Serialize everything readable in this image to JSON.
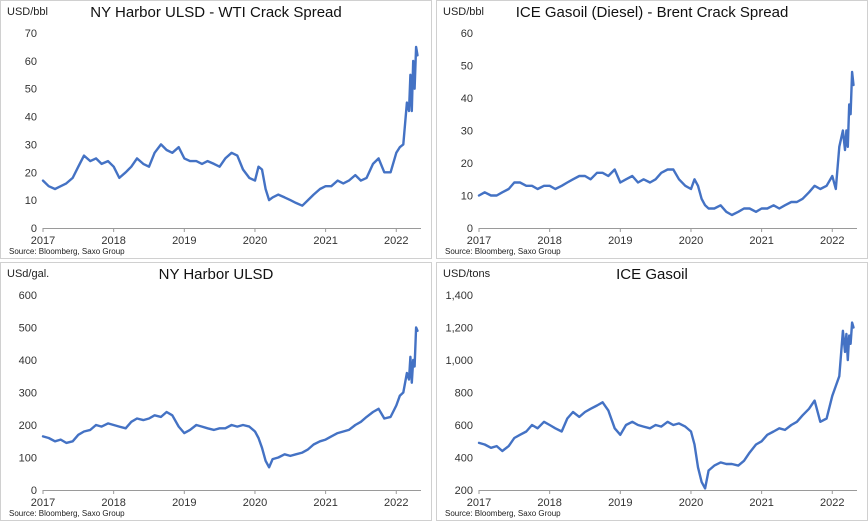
{
  "chart_data": [
    {
      "type": "line",
      "unit_label": "USD/bbl",
      "title": "NY Harbor ULSD - WTI Crack Spread",
      "source": "Source: Bloomberg, Saxo Group",
      "xlim": [
        2017.0,
        2022.35
      ],
      "x_ticks": [
        "2017",
        "2018",
        "2019",
        "2020",
        "2021",
        "2022"
      ],
      "ylim": [
        0,
        70
      ],
      "y_ticks": [
        "0",
        "10",
        "20",
        "30",
        "40",
        "50",
        "60",
        "70"
      ],
      "color": "#4472c4",
      "series": [
        {
          "x": [
            2017.0,
            2017.08,
            2017.17,
            2017.25,
            2017.33,
            2017.42,
            2017.5,
            2017.58,
            2017.67,
            2017.75,
            2017.83,
            2017.92,
            2018.0,
            2018.08,
            2018.17,
            2018.25,
            2018.33,
            2018.42,
            2018.5,
            2018.58,
            2018.67,
            2018.75,
            2018.83,
            2018.92,
            2019.0,
            2019.08,
            2019.17,
            2019.25,
            2019.33,
            2019.42,
            2019.5,
            2019.58,
            2019.67,
            2019.75,
            2019.83,
            2019.92,
            2020.0,
            2020.05,
            2020.1,
            2020.15,
            2020.2,
            2020.25,
            2020.33,
            2020.42,
            2020.5,
            2020.58,
            2020.67,
            2020.75,
            2020.83,
            2020.92,
            2021.0,
            2021.08,
            2021.17,
            2021.25,
            2021.33,
            2021.42,
            2021.5,
            2021.58,
            2021.67,
            2021.75,
            2021.83,
            2021.92,
            2022.0,
            2022.05,
            2022.1,
            2022.15,
            2022.18,
            2022.2,
            2022.22,
            2022.24,
            2022.26,
            2022.28,
            2022.3
          ],
          "y": [
            17,
            15,
            14,
            15,
            16,
            18,
            22,
            26,
            24,
            25,
            23,
            24,
            22,
            18,
            20,
            22,
            25,
            23,
            22,
            27,
            30,
            28,
            27,
            29,
            25,
            24,
            24,
            23,
            24,
            23,
            22,
            25,
            27,
            26,
            21,
            18,
            17,
            22,
            21,
            14,
            10,
            11,
            12,
            11,
            10,
            9,
            8,
            10,
            12,
            14,
            15,
            15,
            17,
            16,
            17,
            19,
            17,
            18,
            23,
            25,
            20,
            20,
            27,
            29,
            30,
            45,
            42,
            55,
            42,
            60,
            50,
            65,
            62
          ]
        }
      ]
    },
    {
      "type": "line",
      "unit_label": "USD/bbl",
      "title": "ICE Gasoil (Diesel) - Brent Crack Spread",
      "source": "Source: Bloomberg, Saxo Group",
      "xlim": [
        2017.0,
        2022.35
      ],
      "x_ticks": [
        "2017",
        "2018",
        "2019",
        "2020",
        "2021",
        "2022"
      ],
      "ylim": [
        0,
        60
      ],
      "y_ticks": [
        "0",
        "10",
        "20",
        "30",
        "40",
        "50",
        "60"
      ],
      "color": "#4472c4",
      "series": [
        {
          "x": [
            2017.0,
            2017.08,
            2017.17,
            2017.25,
            2017.33,
            2017.42,
            2017.5,
            2017.58,
            2017.67,
            2017.75,
            2017.83,
            2017.92,
            2018.0,
            2018.08,
            2018.17,
            2018.25,
            2018.33,
            2018.42,
            2018.5,
            2018.58,
            2018.67,
            2018.75,
            2018.83,
            2018.92,
            2019.0,
            2019.08,
            2019.17,
            2019.25,
            2019.33,
            2019.42,
            2019.5,
            2019.58,
            2019.67,
            2019.75,
            2019.83,
            2019.92,
            2020.0,
            2020.05,
            2020.1,
            2020.15,
            2020.2,
            2020.25,
            2020.33,
            2020.42,
            2020.5,
            2020.58,
            2020.67,
            2020.75,
            2020.83,
            2020.92,
            2021.0,
            2021.08,
            2021.17,
            2021.25,
            2021.33,
            2021.42,
            2021.5,
            2021.58,
            2021.67,
            2021.75,
            2021.83,
            2021.92,
            2022.0,
            2022.05,
            2022.1,
            2022.15,
            2022.18,
            2022.2,
            2022.22,
            2022.24,
            2022.26,
            2022.28,
            2022.3
          ],
          "y": [
            10,
            11,
            10,
            10,
            11,
            12,
            14,
            14,
            13,
            13,
            12,
            13,
            13,
            12,
            13,
            14,
            15,
            16,
            16,
            15,
            17,
            17,
            16,
            18,
            14,
            15,
            16,
            14,
            15,
            14,
            15,
            17,
            18,
            18,
            15,
            13,
            12,
            15,
            13,
            9,
            7,
            6,
            6,
            7,
            5,
            4,
            5,
            6,
            6,
            5,
            6,
            6,
            7,
            6,
            7,
            8,
            8,
            9,
            11,
            13,
            12,
            13,
            16,
            12,
            25,
            30,
            24,
            30,
            25,
            38,
            35,
            48,
            44
          ]
        }
      ]
    },
    {
      "type": "line",
      "unit_label": "USd/gal.",
      "title": "NY Harbor ULSD",
      "source": "Source: Bloomberg, Saxo Group",
      "xlim": [
        2017.0,
        2022.35
      ],
      "x_ticks": [
        "2017",
        "2018",
        "2019",
        "2020",
        "2021",
        "2022"
      ],
      "ylim": [
        0,
        600
      ],
      "y_ticks": [
        "0",
        "100",
        "200",
        "300",
        "400",
        "500",
        "600"
      ],
      "color": "#4472c4",
      "series": [
        {
          "x": [
            2017.0,
            2017.08,
            2017.17,
            2017.25,
            2017.33,
            2017.42,
            2017.5,
            2017.58,
            2017.67,
            2017.75,
            2017.83,
            2017.92,
            2018.0,
            2018.08,
            2018.17,
            2018.25,
            2018.33,
            2018.42,
            2018.5,
            2018.58,
            2018.67,
            2018.75,
            2018.83,
            2018.92,
            2019.0,
            2019.08,
            2019.17,
            2019.25,
            2019.33,
            2019.42,
            2019.5,
            2019.58,
            2019.67,
            2019.75,
            2019.83,
            2019.92,
            2020.0,
            2020.05,
            2020.1,
            2020.15,
            2020.2,
            2020.25,
            2020.33,
            2020.42,
            2020.5,
            2020.58,
            2020.67,
            2020.75,
            2020.83,
            2020.92,
            2021.0,
            2021.08,
            2021.17,
            2021.25,
            2021.33,
            2021.42,
            2021.5,
            2021.58,
            2021.67,
            2021.75,
            2021.83,
            2021.92,
            2022.0,
            2022.05,
            2022.1,
            2022.15,
            2022.18,
            2022.2,
            2022.22,
            2022.24,
            2022.26,
            2022.28,
            2022.3
          ],
          "y": [
            165,
            160,
            150,
            155,
            145,
            150,
            170,
            180,
            185,
            200,
            195,
            205,
            200,
            195,
            190,
            210,
            220,
            215,
            220,
            230,
            225,
            240,
            230,
            195,
            175,
            185,
            200,
            195,
            190,
            185,
            190,
            190,
            200,
            195,
            200,
            195,
            180,
            160,
            130,
            90,
            70,
            95,
            100,
            110,
            105,
            110,
            115,
            125,
            140,
            150,
            155,
            165,
            175,
            180,
            185,
            200,
            210,
            225,
            240,
            250,
            220,
            225,
            260,
            290,
            300,
            360,
            340,
            410,
            330,
            400,
            380,
            500,
            490
          ]
        }
      ]
    },
    {
      "type": "line",
      "unit_label": "USD/tons",
      "title": "ICE Gasoil",
      "source": "Source: Bloomberg, Saxo Group",
      "xlim": [
        2017.0,
        2022.35
      ],
      "x_ticks": [
        "2017",
        "2018",
        "2019",
        "2020",
        "2021",
        "2022"
      ],
      "ylim": [
        200,
        1400
      ],
      "y_ticks": [
        "200",
        "400",
        "600",
        "800",
        "1,000",
        "1,200",
        "1,400"
      ],
      "color": "#4472c4",
      "series": [
        {
          "x": [
            2017.0,
            2017.08,
            2017.17,
            2017.25,
            2017.33,
            2017.42,
            2017.5,
            2017.58,
            2017.67,
            2017.75,
            2017.83,
            2017.92,
            2018.0,
            2018.08,
            2018.17,
            2018.25,
            2018.33,
            2018.42,
            2018.5,
            2018.58,
            2018.67,
            2018.75,
            2018.83,
            2018.92,
            2019.0,
            2019.08,
            2019.17,
            2019.25,
            2019.33,
            2019.42,
            2019.5,
            2019.58,
            2019.67,
            2019.75,
            2019.83,
            2019.92,
            2020.0,
            2020.05,
            2020.1,
            2020.15,
            2020.2,
            2020.25,
            2020.33,
            2020.42,
            2020.5,
            2020.58,
            2020.67,
            2020.75,
            2020.83,
            2020.92,
            2021.0,
            2021.08,
            2021.17,
            2021.25,
            2021.33,
            2021.42,
            2021.5,
            2021.58,
            2021.67,
            2021.75,
            2021.83,
            2021.92,
            2022.0,
            2022.05,
            2022.1,
            2022.15,
            2022.18,
            2022.2,
            2022.22,
            2022.24,
            2022.26,
            2022.28,
            2022.3
          ],
          "y": [
            490,
            480,
            460,
            470,
            440,
            470,
            520,
            540,
            560,
            600,
            580,
            620,
            600,
            580,
            560,
            640,
            680,
            650,
            680,
            700,
            720,
            740,
            690,
            580,
            540,
            600,
            620,
            600,
            590,
            580,
            600,
            590,
            620,
            600,
            610,
            590,
            560,
            480,
            340,
            250,
            210,
            320,
            350,
            370,
            360,
            360,
            350,
            380,
            430,
            480,
            500,
            540,
            560,
            580,
            570,
            600,
            620,
            660,
            700,
            750,
            620,
            640,
            780,
            840,
            900,
            1180,
            1050,
            1160,
            1000,
            1150,
            1100,
            1230,
            1200
          ]
        }
      ]
    }
  ]
}
